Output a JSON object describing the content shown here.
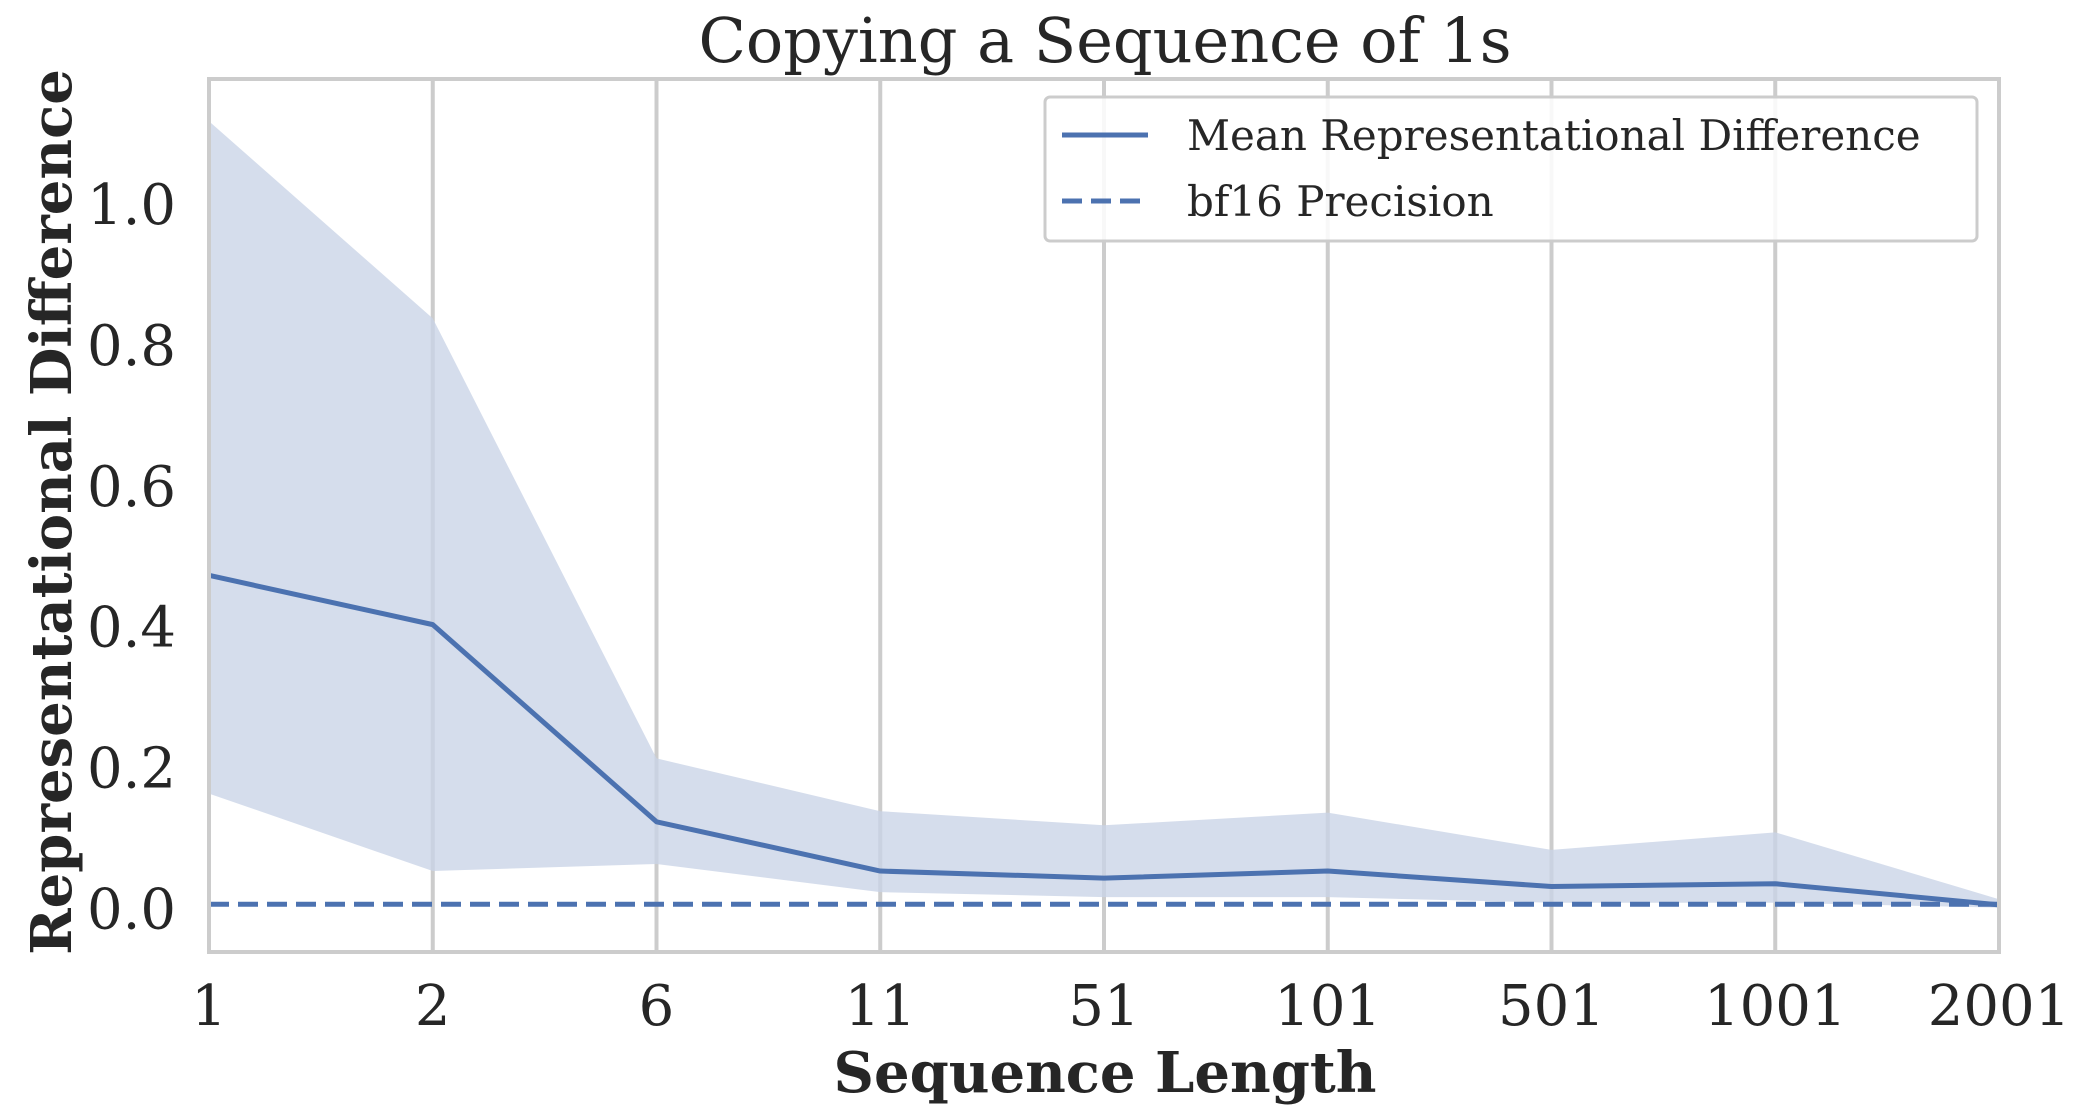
{
  "chart_data": {
    "type": "line",
    "title": "Copying a Sequence of 1s",
    "xlabel": "Sequence Length",
    "ylabel": "Representational Difference",
    "x_scale": "categorical",
    "categories": [
      "1",
      "2",
      "6",
      "11",
      "51",
      "101",
      "501",
      "1001",
      "2001"
    ],
    "ylim": [
      -0.06,
      1.18
    ],
    "yticks": [
      0.0,
      0.2,
      0.4,
      0.6,
      0.8,
      1.0
    ],
    "ytick_labels": [
      "0.0",
      "0.2",
      "0.4",
      "0.6",
      "0.8",
      "1.0"
    ],
    "grid": "vertical",
    "legend_position": "top-right",
    "series": [
      {
        "name": "Mean Representational Difference",
        "style": "solid",
        "color": "#4c72b0",
        "values": [
          0.475,
          0.405,
          0.125,
          0.055,
          0.045,
          0.055,
          0.033,
          0.037,
          0.007
        ],
        "band_lower": [
          0.165,
          0.055,
          0.065,
          0.025,
          0.018,
          0.018,
          0.01,
          0.01,
          0.003
        ],
        "band_upper": [
          1.12,
          0.84,
          0.215,
          0.14,
          0.12,
          0.138,
          0.085,
          0.11,
          0.015
        ],
        "band_color": "#c9d4e7"
      },
      {
        "name": "bf16 Precision",
        "style": "dashed",
        "color": "#4c72b0",
        "values": [
          0.0078125,
          0.0078125,
          0.0078125,
          0.0078125,
          0.0078125,
          0.0078125,
          0.0078125,
          0.0078125,
          0.0078125
        ]
      }
    ]
  }
}
